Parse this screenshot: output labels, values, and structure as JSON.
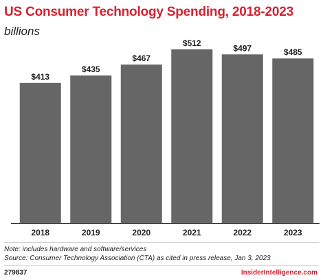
{
  "header": {
    "title": "US Consumer Technology Spending, 2018-2023",
    "subtitle": "billions"
  },
  "chart_data": {
    "type": "bar",
    "categories": [
      "2018",
      "2019",
      "2020",
      "2021",
      "2022",
      "2023"
    ],
    "values": [
      413,
      435,
      467,
      512,
      497,
      485
    ],
    "value_labels": [
      "$413",
      "$435",
      "$467",
      "$512",
      "$497",
      "$485"
    ],
    "title": "US Consumer Technology Spending, 2018-2023",
    "subtitle": "billions",
    "xlabel": "",
    "ylabel": "",
    "ylim": [
      0,
      540
    ],
    "grid": false,
    "bar_color": "#666666"
  },
  "footer": {
    "note": "Note: includes hardware and software/services",
    "source": "Source: Consumer Technology Association (CTA) as cited in press release, Jan 3, 2023",
    "chart_id": "279837",
    "brand": "InsiderIntelligence.com"
  },
  "colors": {
    "accent": "#d91f2f",
    "bar": "#666666",
    "text": "#222222",
    "divider": "#cfcfcf"
  }
}
